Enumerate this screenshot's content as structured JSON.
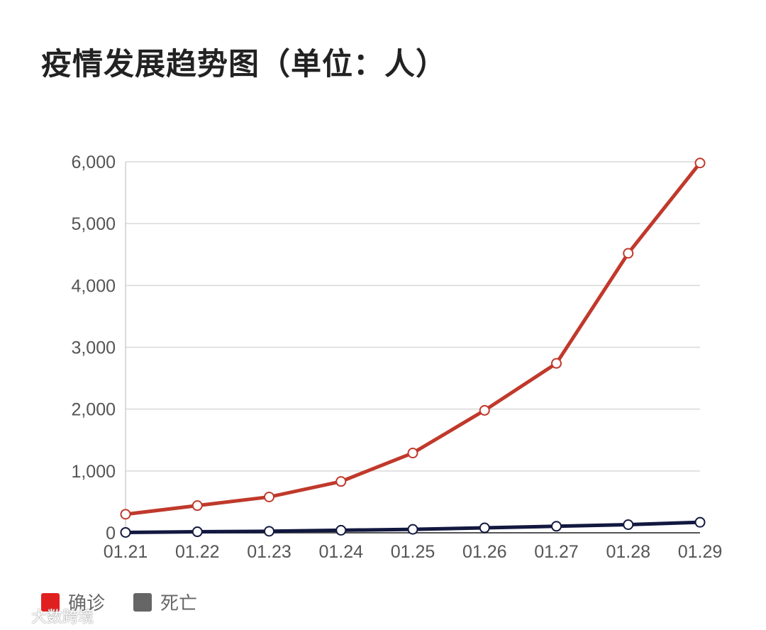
{
  "chart_data": {
    "type": "line",
    "title": "疫情发展趋势图（单位：人）",
    "categories": [
      "01.21",
      "01.22",
      "01.23",
      "01.24",
      "01.25",
      "01.26",
      "01.27",
      "01.28",
      "01.29"
    ],
    "y_ticks": [
      "0",
      "1,000",
      "2,000",
      "3,000",
      "4,000",
      "5,000",
      "6,000"
    ],
    "ylim": [
      0,
      6000
    ],
    "grid": true,
    "legend_position": "bottom-left",
    "series": [
      {
        "name": "确诊",
        "color": "#c0392b",
        "legend_color": "#e02020",
        "values": [
          300,
          440,
          580,
          830,
          1290,
          1980,
          2740,
          4520,
          5980
        ]
      },
      {
        "name": "死亡",
        "color": "#12183f",
        "legend_color": "#666666",
        "values": [
          6,
          17,
          25,
          41,
          56,
          80,
          106,
          132,
          170
        ]
      }
    ]
  },
  "watermark": {
    "text": "大数跨境"
  }
}
